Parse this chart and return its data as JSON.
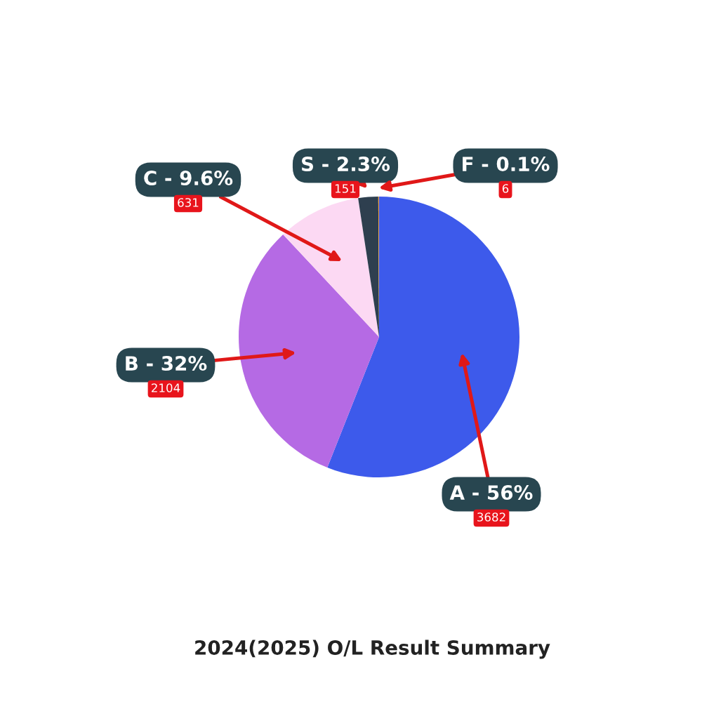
{
  "chart_data": {
    "type": "pie",
    "title": "2024(2025) O/L Result Summary",
    "categories": [
      "A - 56%",
      "B - 32%",
      "C - 9.6%",
      "S - 2.3%",
      "F - 0.1%"
    ],
    "values": [
      3682,
      2104,
      631,
      151,
      6
    ],
    "colors": [
      "#3d5aeb",
      "#b56ae4",
      "#fcd9f3",
      "#2e3f4f",
      "#f0a040"
    ],
    "data_labels": true
  }
}
